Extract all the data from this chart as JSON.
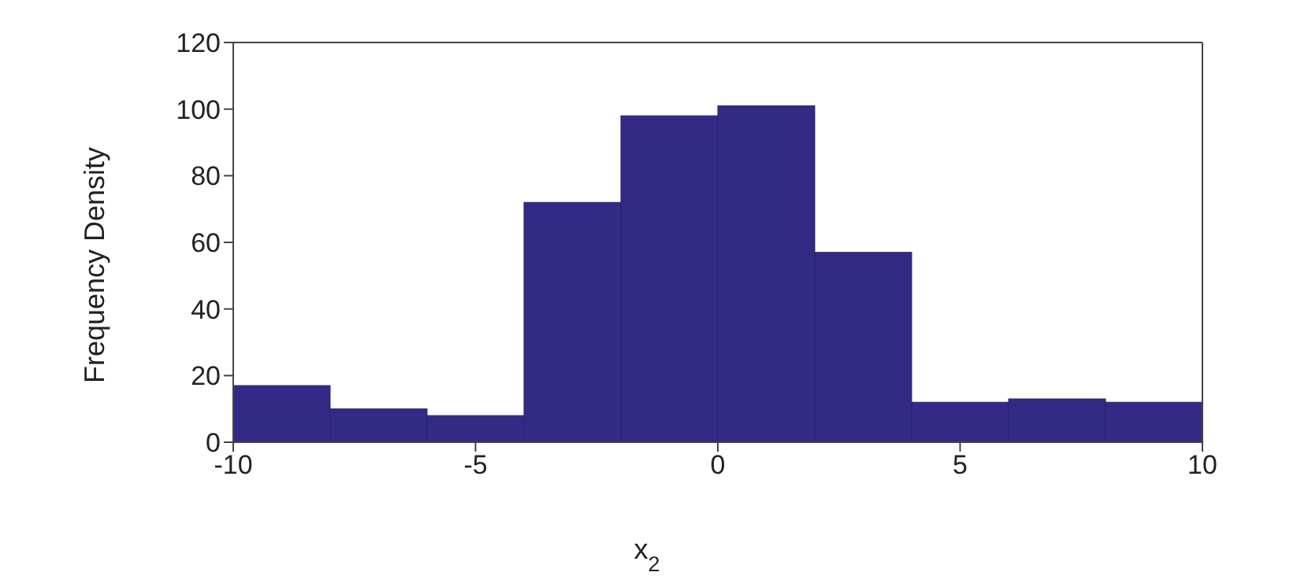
{
  "chart_data": {
    "type": "histogram",
    "xlabel": "x$_{2}$",
    "ylabel": "Frequency Density",
    "bins": [
      -10,
      -8,
      -6,
      -4,
      -2,
      0,
      2,
      4,
      6,
      8,
      10
    ],
    "values": [
      17,
      10,
      8,
      72,
      98,
      101,
      57,
      12,
      13,
      12
    ],
    "color": "#332a85",
    "xlim": [
      -10,
      10
    ],
    "xticks": [
      -10,
      -5,
      0,
      5,
      10
    ],
    "ylim": [
      0,
      120
    ],
    "yticks": [
      0,
      20,
      40,
      60,
      80,
      100,
      120
    ]
  }
}
